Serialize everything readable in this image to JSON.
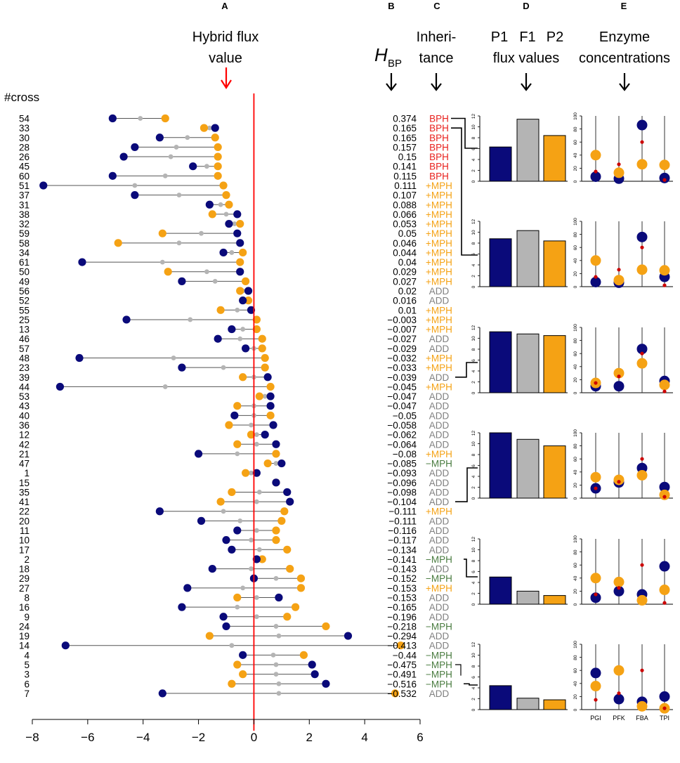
{
  "panel_letters": [
    "A",
    "B",
    "C",
    "D",
    "E"
  ],
  "header": {
    "hybrid_title_line1": "Hybrid flux",
    "hybrid_title_line2": "value",
    "cross_label": "#cross",
    "hbp_main": "H",
    "hbp_sub": "BP",
    "inherit_line1": "Inheri-",
    "inherit_line2": "tance",
    "flux_labels": [
      "P1",
      "F1",
      "P2"
    ],
    "flux_line2": "flux values",
    "enzyme_line1": "Enzyme",
    "enzyme_line2": "concentrations"
  },
  "colors": {
    "p1": "#0a0a7a",
    "f1": "#b4b4b4",
    "p2": "#f5a214",
    "line": "#ff0000",
    "BPH": "#e8201c",
    "+MPH": "#f5a214",
    "ADD": "#808080",
    "-MPH": "#4a7c40",
    "enzyme_dot": "#cc0000"
  },
  "chart_data": [
    {
      "type": "dumbbell",
      "title": "Hybrid flux value",
      "xlabel": "",
      "ylabel": "#cross",
      "xlim": [
        -8,
        6
      ],
      "xticks": [
        "-8",
        "-6",
        "-4",
        "-2",
        "0",
        "2",
        "4",
        "6"
      ],
      "reference_line": 0,
      "rows": [
        {
          "cross": "54",
          "p1": -5.1,
          "f1": -4.1,
          "p2": -3.2,
          "hbp": "0.374",
          "inh": "BPH"
        },
        {
          "cross": "33",
          "p1": -1.4,
          "f1": -1.6,
          "p2": -1.8,
          "hbp": "0.165",
          "inh": "BPH"
        },
        {
          "cross": "30",
          "p1": -3.4,
          "f1": -2.4,
          "p2": -1.4,
          "hbp": "0.165",
          "inh": "BPH"
        },
        {
          "cross": "28",
          "p1": -4.3,
          "f1": -2.8,
          "p2": -1.3,
          "hbp": "0.157",
          "inh": "BPH"
        },
        {
          "cross": "26",
          "p1": -4.7,
          "f1": -3.0,
          "p2": -1.3,
          "hbp": "0.15",
          "inh": "BPH"
        },
        {
          "cross": "45",
          "p1": -2.2,
          "f1": -1.7,
          "p2": -1.3,
          "hbp": "0.141",
          "inh": "BPH"
        },
        {
          "cross": "60",
          "p1": -5.1,
          "f1": -3.2,
          "p2": -1.3,
          "hbp": "0.115",
          "inh": "BPH"
        },
        {
          "cross": "51",
          "p1": -7.6,
          "f1": -4.3,
          "p2": -1.1,
          "hbp": "0.111",
          "inh": "+MPH"
        },
        {
          "cross": "37",
          "p1": -4.3,
          "f1": -2.7,
          "p2": -1.0,
          "hbp": "0.107",
          "inh": "+MPH"
        },
        {
          "cross": "31",
          "p1": -1.6,
          "f1": -1.2,
          "p2": -0.9,
          "hbp": "0.088",
          "inh": "+MPH"
        },
        {
          "cross": "38",
          "p1": -0.6,
          "f1": -1.0,
          "p2": -1.5,
          "hbp": "0.066",
          "inh": "+MPH"
        },
        {
          "cross": "32",
          "p1": -0.9,
          "f1": -0.7,
          "p2": -0.5,
          "hbp": "0.053",
          "inh": "+MPH"
        },
        {
          "cross": "59",
          "p1": -0.6,
          "f1": -1.9,
          "p2": -3.3,
          "hbp": "0.05",
          "inh": "+MPH"
        },
        {
          "cross": "58",
          "p1": -0.5,
          "f1": -2.7,
          "p2": -4.9,
          "hbp": "0.046",
          "inh": "+MPH"
        },
        {
          "cross": "34",
          "p1": -1.1,
          "f1": -0.8,
          "p2": -0.4,
          "hbp": "0.044",
          "inh": "+MPH"
        },
        {
          "cross": "61",
          "p1": -6.2,
          "f1": -3.3,
          "p2": -0.5,
          "hbp": "0.04",
          "inh": "+MPH"
        },
        {
          "cross": "50",
          "p1": -0.5,
          "f1": -1.7,
          "p2": -3.1,
          "hbp": "0.029",
          "inh": "+MPH"
        },
        {
          "cross": "49",
          "p1": -2.6,
          "f1": -1.4,
          "p2": -0.3,
          "hbp": "0.027",
          "inh": "+MPH"
        },
        {
          "cross": "56",
          "p1": -0.2,
          "f1": -0.4,
          "p2": -0.5,
          "hbp": "0.02",
          "inh": "ADD"
        },
        {
          "cross": "52",
          "p1": -0.4,
          "f1": -0.3,
          "p2": -0.2,
          "hbp": "0.016",
          "inh": "ADD"
        },
        {
          "cross": "55",
          "p1": -0.1,
          "f1": -0.6,
          "p2": -1.2,
          "hbp": "0.01",
          "inh": "+MPH"
        },
        {
          "cross": "25",
          "p1": -4.6,
          "f1": -2.3,
          "p2": 0.1,
          "hbp": "−0.003",
          "inh": "+MPH"
        },
        {
          "cross": "13",
          "p1": -0.8,
          "f1": -0.4,
          "p2": 0.1,
          "hbp": "−0.007",
          "inh": "+MPH"
        },
        {
          "cross": "46",
          "p1": -1.3,
          "f1": -0.5,
          "p2": 0.3,
          "hbp": "−0.027",
          "inh": "ADD"
        },
        {
          "cross": "57",
          "p1": -0.3,
          "f1": 0.0,
          "p2": 0.3,
          "hbp": "−0.029",
          "inh": "ADD"
        },
        {
          "cross": "48",
          "p1": -6.3,
          "f1": -2.9,
          "p2": 0.4,
          "hbp": "−0.032",
          "inh": "+MPH"
        },
        {
          "cross": "23",
          "p1": -2.6,
          "f1": -1.1,
          "p2": 0.4,
          "hbp": "−0.033",
          "inh": "+MPH"
        },
        {
          "cross": "39",
          "p1": 0.5,
          "f1": 0.0,
          "p2": -0.4,
          "hbp": "−0.039",
          "inh": "ADD"
        },
        {
          "cross": "44",
          "p1": -7.0,
          "f1": -3.2,
          "p2": 0.6,
          "hbp": "−0.045",
          "inh": "+MPH"
        },
        {
          "cross": "53",
          "p1": 0.6,
          "f1": 0.4,
          "p2": 0.2,
          "hbp": "−0.047",
          "inh": "ADD"
        },
        {
          "cross": "43",
          "p1": 0.6,
          "f1": 0.0,
          "p2": -0.6,
          "hbp": "−0.047",
          "inh": "ADD"
        },
        {
          "cross": "40",
          "p1": -0.7,
          "f1": 0.0,
          "p2": 0.6,
          "hbp": "−0.05",
          "inh": "ADD"
        },
        {
          "cross": "36",
          "p1": 0.7,
          "f1": -0.1,
          "p2": -0.9,
          "hbp": "−0.058",
          "inh": "ADD"
        },
        {
          "cross": "12",
          "p1": 0.4,
          "f1": 0.1,
          "p2": -0.1,
          "hbp": "−0.062",
          "inh": "ADD"
        },
        {
          "cross": "42",
          "p1": 0.8,
          "f1": 0.1,
          "p2": -0.6,
          "hbp": "−0.064",
          "inh": "ADD"
        },
        {
          "cross": "21",
          "p1": -2.0,
          "f1": -0.6,
          "p2": 0.8,
          "hbp": "−0.08",
          "inh": "+MPH"
        },
        {
          "cross": "47",
          "p1": 1.0,
          "f1": 0.8,
          "p2": 0.5,
          "hbp": "−0.085",
          "inh": "-MPH"
        },
        {
          "cross": "1",
          "p1": 0.1,
          "f1": -0.1,
          "p2": -0.3,
          "hbp": "−0.093",
          "inh": "ADD"
        },
        {
          "cross": "15",
          "p1": 0.8,
          "f1": 0.8,
          "p2": 0.8,
          "hbp": "−0.096",
          "inh": "ADD"
        },
        {
          "cross": "35",
          "p1": 1.2,
          "f1": 0.2,
          "p2": -0.8,
          "hbp": "−0.098",
          "inh": "ADD"
        },
        {
          "cross": "41",
          "p1": 1.3,
          "f1": 0.1,
          "p2": -1.2,
          "hbp": "−0.104",
          "inh": "ADD"
        },
        {
          "cross": "22",
          "p1": -3.4,
          "f1": -1.1,
          "p2": 1.1,
          "hbp": "−0.111",
          "inh": "+MPH"
        },
        {
          "cross": "20",
          "p1": -1.9,
          "f1": -0.5,
          "p2": 1.0,
          "hbp": "−0.111",
          "inh": "ADD"
        },
        {
          "cross": "11",
          "p1": -0.6,
          "f1": 0.1,
          "p2": 0.8,
          "hbp": "−0.116",
          "inh": "ADD"
        },
        {
          "cross": "10",
          "p1": -1.0,
          "f1": -0.1,
          "p2": 0.8,
          "hbp": "−0.117",
          "inh": "ADD"
        },
        {
          "cross": "17",
          "p1": -0.8,
          "f1": 0.2,
          "p2": 1.2,
          "hbp": "−0.134",
          "inh": "ADD"
        },
        {
          "cross": "2",
          "p1": 0.1,
          "f1": 0.2,
          "p2": 0.3,
          "hbp": "−0.141",
          "inh": "-MPH"
        },
        {
          "cross": "18",
          "p1": -1.5,
          "f1": -0.1,
          "p2": 1.3,
          "hbp": "−0.143",
          "inh": "ADD"
        },
        {
          "cross": "29",
          "p1": 0.0,
          "f1": 0.8,
          "p2": 1.7,
          "hbp": "−0.152",
          "inh": "-MPH"
        },
        {
          "cross": "27",
          "p1": -2.4,
          "f1": -0.4,
          "p2": 1.7,
          "hbp": "−0.153",
          "inh": "+MPH"
        },
        {
          "cross": "8",
          "p1": 0.9,
          "f1": 0.1,
          "p2": -0.6,
          "hbp": "−0.153",
          "inh": "ADD"
        },
        {
          "cross": "16",
          "p1": -2.6,
          "f1": -0.6,
          "p2": 1.5,
          "hbp": "−0.165",
          "inh": "ADD"
        },
        {
          "cross": "9",
          "p1": -1.1,
          "f1": 0.1,
          "p2": 1.2,
          "hbp": "−0.196",
          "inh": "ADD"
        },
        {
          "cross": "24",
          "p1": -1.0,
          "f1": 0.8,
          "p2": 2.6,
          "hbp": "−0.218",
          "inh": "-MPH"
        },
        {
          "cross": "19",
          "p1": 3.4,
          "f1": 0.9,
          "p2": -1.6,
          "hbp": "−0.294",
          "inh": "ADD"
        },
        {
          "cross": "14",
          "p1": -6.8,
          "f1": -0.8,
          "p2": 5.3,
          "hbp": "−0.413",
          "inh": "ADD"
        },
        {
          "cross": "4",
          "p1": -0.4,
          "f1": 0.7,
          "p2": 1.8,
          "hbp": "−0.44",
          "inh": "-MPH"
        },
        {
          "cross": "5",
          "p1": 2.1,
          "f1": 0.8,
          "p2": -0.6,
          "hbp": "−0.475",
          "inh": "-MPH"
        },
        {
          "cross": "3",
          "p1": 2.2,
          "f1": 0.8,
          "p2": -0.4,
          "hbp": "−0.491",
          "inh": "-MPH"
        },
        {
          "cross": "6",
          "p1": 2.6,
          "f1": 0.9,
          "p2": -0.8,
          "hbp": "−0.516",
          "inh": "-MPH"
        },
        {
          "cross": "7",
          "p1": -3.3,
          "f1": 0.9,
          "p2": 5.1,
          "hbp": "−0.532",
          "inh": "ADD"
        }
      ]
    },
    {
      "type": "bar",
      "title": "P1 F1 P2 flux values",
      "categories": [
        "P1",
        "F1",
        "P2"
      ],
      "ylim": [
        0,
        12
      ],
      "yticks": [
        "0",
        "2",
        "4",
        "6",
        "8",
        "10",
        "12"
      ],
      "panels": [
        {
          "link_row": 0,
          "values": [
            6.3,
            11.4,
            8.4
          ]
        },
        {
          "link_row": 1,
          "values": [
            8.8,
            10.3,
            8.4
          ]
        },
        {
          "link_row": 27,
          "values": [
            11.2,
            10.8,
            10.5
          ]
        },
        {
          "link_row": 40,
          "values": [
            12.0,
            10.8,
            9.6
          ]
        },
        {
          "link_row": 46,
          "values": [
            5.0,
            2.4,
            1.6
          ]
        },
        {
          "link_row": 59,
          "values": [
            4.4,
            2.1,
            1.8
          ]
        }
      ]
    },
    {
      "type": "scatter",
      "title": "Enzyme concentrations",
      "categories": [
        "PGI",
        "PFK",
        "FBA",
        "TPI"
      ],
      "ylim": [
        0,
        100
      ],
      "yticks": [
        "0",
        "20",
        "40",
        "60",
        "80",
        "100"
      ],
      "panels": [
        {
          "p1": [
            7,
            4,
            86,
            5
          ],
          "p2": [
            40,
            13,
            26,
            25
          ],
          "f1": [
            15,
            26,
            60,
            2
          ]
        },
        {
          "p1": [
            7,
            6,
            76,
            15
          ],
          "p2": [
            40,
            10,
            26,
            25
          ],
          "f1": [
            15,
            26,
            60,
            2
          ]
        },
        {
          "p1": [
            10,
            10,
            67,
            18
          ],
          "p2": [
            15,
            30,
            45,
            12
          ],
          "f1": [
            15,
            25,
            60,
            2
          ]
        },
        {
          "p1": [
            15,
            24,
            46,
            17
          ],
          "p2": [
            32,
            28,
            35,
            5
          ],
          "f1": [
            15,
            25,
            60,
            2
          ]
        },
        {
          "p1": [
            10,
            20,
            15,
            58
          ],
          "p2": [
            40,
            34,
            6,
            22
          ],
          "f1": [
            15,
            25,
            60,
            2
          ]
        },
        {
          "p1": [
            56,
            16,
            12,
            20
          ],
          "p2": [
            36,
            60,
            5,
            2
          ],
          "f1": [
            15,
            25,
            60,
            2
          ]
        }
      ]
    }
  ]
}
